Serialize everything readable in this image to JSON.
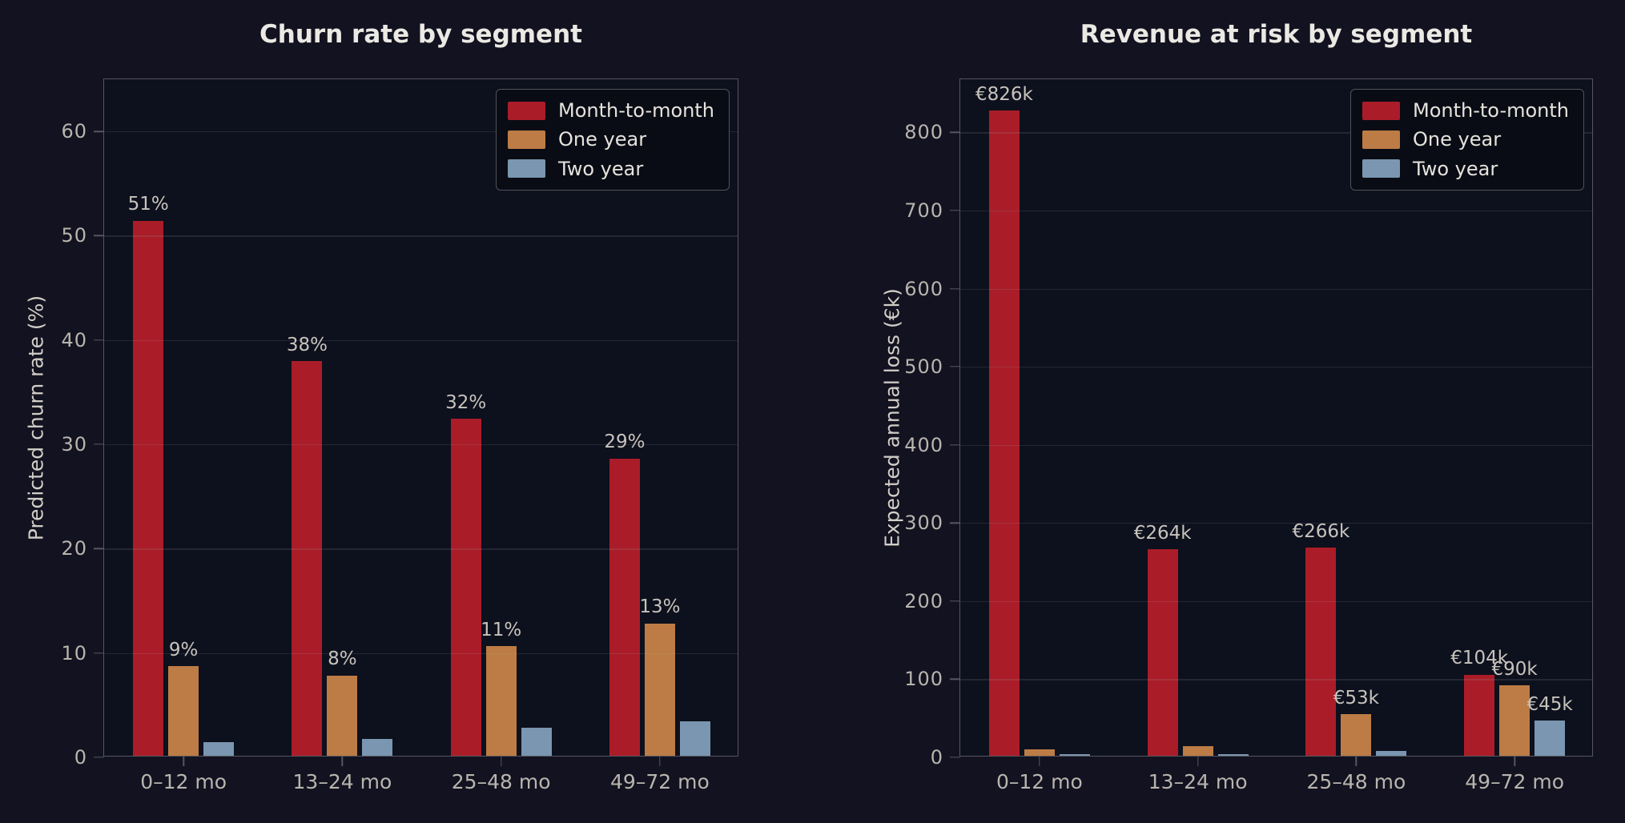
{
  "theme": {
    "figure_bg": "#131220",
    "axes_bg": "#0d101d",
    "spine_color": "#565761",
    "grid_color": "rgba(152,152,160,0.17)",
    "title_color": "#ebe9e3",
    "tick_label_color": "#b8b5ae",
    "bar_label_color": "#c7c3bc",
    "axis_label_color": "#d2cec7",
    "legend_bg": "#090c15",
    "legend_border": "#51525a",
    "series_colors": {
      "month_to_month": "#aa1d28",
      "one_year": "#bd7c45",
      "two_year": "#7a96b0"
    }
  },
  "chart_data": [
    {
      "type": "bar",
      "title": "Churn rate by segment",
      "ylabel": "Predicted churn rate (%)",
      "xlabel": "",
      "categories": [
        "0–12 mo",
        "13–24 mo",
        "25–48 mo",
        "49–72 mo"
      ],
      "ylim": [
        0,
        65
      ],
      "grid": true,
      "legend_position": "upper right",
      "yticks": [
        {
          "value": 0,
          "label": "0"
        },
        {
          "value": 10,
          "label": "10"
        },
        {
          "value": 20,
          "label": "20"
        },
        {
          "value": 30,
          "label": "30"
        },
        {
          "value": 40,
          "label": "40"
        },
        {
          "value": 50,
          "label": "50"
        },
        {
          "value": 60,
          "label": "60"
        }
      ],
      "series": [
        {
          "name": "Month-to-month",
          "color": "#aa1d28",
          "values": [
            51.3,
            37.8,
            32.3,
            28.5
          ],
          "bar_labels": [
            "51%",
            "38%",
            "32%",
            "29%"
          ]
        },
        {
          "name": "One year",
          "color": "#bd7c45",
          "values": [
            8.6,
            7.7,
            10.5,
            12.7
          ],
          "bar_labels": [
            "9%",
            "8%",
            "11%",
            "13%"
          ]
        },
        {
          "name": "Two year",
          "color": "#7a96b0",
          "values": [
            1.3,
            1.6,
            2.7,
            3.3
          ],
          "bar_labels": [
            null,
            null,
            null,
            null
          ]
        }
      ]
    },
    {
      "type": "bar",
      "title": "Revenue at risk by segment",
      "ylabel": "Expected annual loss (€k)",
      "xlabel": "",
      "categories": [
        "0–12 mo",
        "13–24 mo",
        "25–48 mo",
        "49–72 mo"
      ],
      "ylim": [
        0,
        868
      ],
      "grid": true,
      "legend_position": "upper right",
      "yticks": [
        {
          "value": 0,
          "label": "0"
        },
        {
          "value": 100,
          "label": "100"
        },
        {
          "value": 200,
          "label": "200"
        },
        {
          "value": 300,
          "label": "300"
        },
        {
          "value": 400,
          "label": "400"
        },
        {
          "value": 500,
          "label": "500"
        },
        {
          "value": 600,
          "label": "600"
        },
        {
          "value": 700,
          "label": "700"
        },
        {
          "value": 800,
          "label": "800"
        }
      ],
      "series": [
        {
          "name": "Month-to-month",
          "color": "#aa1d28",
          "values": [
            826,
            264,
            266,
            104
          ],
          "bar_labels": [
            "€826k",
            "€264k",
            "€266k",
            "€104k"
          ]
        },
        {
          "name": "One year",
          "color": "#bd7c45",
          "values": [
            8,
            12,
            53,
            90
          ],
          "bar_labels": [
            null,
            null,
            "€53k",
            "€90k"
          ]
        },
        {
          "name": "Two year",
          "color": "#7a96b0",
          "values": [
            2,
            2,
            6,
            45
          ],
          "bar_labels": [
            null,
            null,
            null,
            "€45k"
          ]
        }
      ]
    }
  ]
}
